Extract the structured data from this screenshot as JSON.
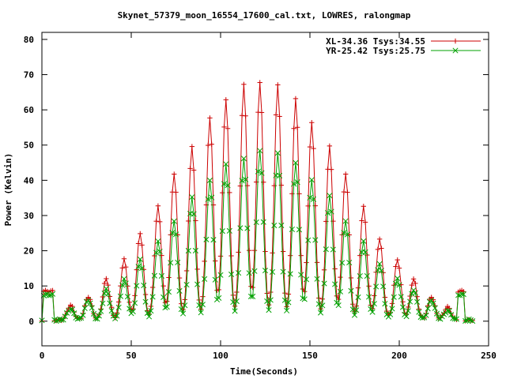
{
  "chart_data": {
    "type": "line",
    "title": "Skynet_57379_moon_16554_17600_cal.txt, LOWRES, ralongmap",
    "xlabel": "Time(Seconds)",
    "ylabel": "Power (Kelvin)",
    "xlim": [
      0,
      250
    ],
    "ylim": [
      -7,
      82
    ],
    "xticks": [
      0,
      50,
      100,
      150,
      200,
      250
    ],
    "yticks": [
      0,
      10,
      20,
      30,
      40,
      50,
      60,
      70,
      80
    ],
    "grid": false,
    "legend_position": "top-right",
    "sample_interval_s": 1,
    "series": [
      {
        "name": "XL-34.36 Tsys:34.55",
        "color": "#cc0000",
        "marker": "plus",
        "baseline": 0.3,
        "edge_plateaus": [
          {
            "x_start": 1,
            "x_end": 6,
            "value": 8.5
          },
          {
            "x_start": 233,
            "x_end": 236,
            "value": 8.5
          }
        ],
        "peak_times": [
          16,
          26,
          36,
          46,
          55,
          65,
          74,
          84,
          94,
          103,
          113,
          122,
          132,
          142,
          151,
          161,
          170,
          180,
          189,
          199,
          208,
          218,
          227
        ],
        "peak_values": [
          4.5,
          7,
          12,
          17.5,
          25,
          32.5,
          42,
          49.5,
          57.5,
          63,
          67,
          68,
          67,
          63,
          56.5,
          49.5,
          42,
          32.5,
          23.5,
          17.5,
          12,
          7,
          4
        ]
      },
      {
        "name": "YR-25.42 Tsys:25.75",
        "color": "#00a000",
        "marker": "cross",
        "baseline": 0.3,
        "edge_plateaus": [
          {
            "x_start": 1,
            "x_end": 6,
            "value": 7.5
          },
          {
            "x_start": 233,
            "x_end": 236,
            "value": 7.5
          }
        ],
        "peak_times": [
          16,
          26,
          36,
          46,
          55,
          65,
          74,
          84,
          94,
          103,
          113,
          122,
          132,
          142,
          151,
          161,
          170,
          180,
          189,
          199,
          208,
          218,
          227
        ],
        "peak_values": [
          3.5,
          6,
          9,
          12,
          17.5,
          22.5,
          28.5,
          35,
          40,
          44.5,
          46,
          48.5,
          47.5,
          45,
          40,
          35.5,
          28.5,
          22.5,
          16.5,
          12,
          9,
          6,
          3
        ]
      }
    ]
  }
}
